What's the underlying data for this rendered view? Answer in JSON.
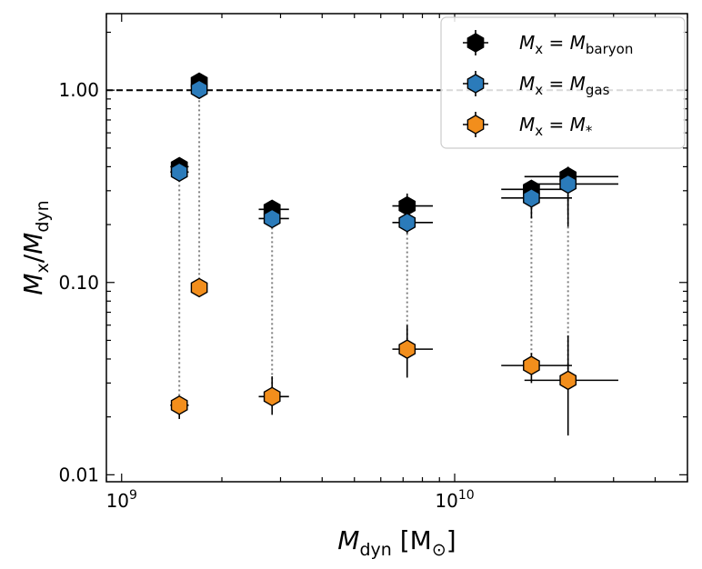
{
  "chart_data": {
    "type": "scatter",
    "x_scale": "log",
    "y_scale": "log",
    "xlim": [
      900000000,
      50000000000
    ],
    "ylim": [
      0.0092,
      2.5
    ],
    "xlabel": {
      "main": "M",
      "sub": "dyn",
      "unit": "[M",
      "unit_sub": "⊙",
      "unit_close": "]"
    },
    "ylabel": {
      "main": "M",
      "sub": "x",
      "slash": "/",
      "main2": "M",
      "sub2": "dyn"
    },
    "x_ticks": [
      {
        "value": 1000000000,
        "base": "10",
        "exp": "9"
      },
      {
        "value": 10000000000,
        "base": "10",
        "exp": "10"
      }
    ],
    "y_ticks": [
      {
        "value": 0.01,
        "label": "0.01"
      },
      {
        "value": 0.1,
        "label": "0.10"
      },
      {
        "value": 1.0,
        "label": "1.00"
      }
    ],
    "reference_line": {
      "y": 1.0,
      "style": "dashed"
    },
    "series": [
      {
        "name": "M_x = M_baryon",
        "legend": {
          "lhs": "M",
          "lhs_sub": "x",
          "eq": "=",
          "rhs": "M",
          "rhs_sub": "baryon"
        },
        "color": "#000000",
        "points": [
          {
            "x": 1490000000,
            "y": 0.4,
            "xerr": [
              1400000000,
              1590000000
            ],
            "yerr": [
              0.37,
              0.43
            ]
          },
          {
            "x": 1710000000,
            "y": 1.1,
            "xerr": [
              1660000000,
              1760000000
            ],
            "yerr": [
              1.02,
              1.19
            ]
          },
          {
            "x": 2830000000,
            "y": 0.24,
            "xerr": [
              2580000000,
              3180000000
            ],
            "yerr": [
              0.22,
              0.26
            ]
          },
          {
            "x": 7200000000,
            "y": 0.25,
            "xerr": [
              6500000000,
              8600000000
            ],
            "yerr": [
              0.22,
              0.29
            ]
          },
          {
            "x": 17000000000,
            "y": 0.305,
            "xerr": [
              13800000000,
              22500000000
            ],
            "yerr": [
              0.24,
              0.34
            ]
          },
          {
            "x": 21900000000,
            "y": 0.355,
            "xerr": [
              16200000000,
              31000000000
            ],
            "yerr": [
              0.23,
              0.4
            ]
          }
        ]
      },
      {
        "name": "M_x = M_gas",
        "legend": {
          "lhs": "M",
          "lhs_sub": "x",
          "eq": "=",
          "rhs": "M",
          "rhs_sub": "gas"
        },
        "color": "#2b7bba",
        "points": [
          {
            "x": 1490000000,
            "y": 0.375,
            "xerr": [
              1400000000,
              1590000000
            ],
            "yerr": [
              0.35,
              0.4
            ]
          },
          {
            "x": 1710000000,
            "y": 1.01,
            "xerr": [
              1660000000,
              1760000000
            ],
            "yerr": [
              0.93,
              1.08
            ]
          },
          {
            "x": 2830000000,
            "y": 0.215,
            "xerr": [
              2580000000,
              3180000000
            ],
            "yerr": [
              0.195,
              0.235
            ]
          },
          {
            "x": 7200000000,
            "y": 0.205,
            "xerr": [
              6500000000,
              8600000000
            ],
            "yerr": [
              0.18,
              0.235
            ]
          },
          {
            "x": 17000000000,
            "y": 0.275,
            "xerr": [
              13800000000,
              22500000000
            ],
            "yerr": [
              0.215,
              0.31
            ]
          },
          {
            "x": 21900000000,
            "y": 0.325,
            "xerr": [
              16200000000,
              31000000000
            ],
            "yerr": [
              0.195,
              0.37
            ]
          }
        ]
      },
      {
        "name": "M_x = M_*",
        "legend": {
          "lhs": "M",
          "lhs_sub": "x",
          "eq": "=",
          "rhs": "M",
          "rhs_sub": "*"
        },
        "color": "#f28e1c",
        "points": [
          {
            "x": 1490000000,
            "y": 0.023,
            "xerr": [
              1400000000,
              1590000000
            ],
            "yerr": [
              0.0195,
              0.0255
            ]
          },
          {
            "x": 1710000000,
            "y": 0.094,
            "xerr": [
              1660000000,
              1760000000
            ],
            "yerr": [
              0.086,
              0.103
            ]
          },
          {
            "x": 2830000000,
            "y": 0.0255,
            "xerr": [
              2580000000,
              3180000000
            ],
            "yerr": [
              0.0205,
              0.0325
            ]
          },
          {
            "x": 7200000000,
            "y": 0.045,
            "xerr": [
              6500000000,
              8600000000
            ],
            "yerr": [
              0.032,
              0.06
            ]
          },
          {
            "x": 17000000000,
            "y": 0.037,
            "xerr": [
              13800000000,
              22500000000
            ],
            "yerr": [
              0.03,
              0.043
            ]
          },
          {
            "x": 21900000000,
            "y": 0.031,
            "xerr": [
              16200000000,
              31000000000
            ],
            "yerr": [
              0.016,
              0.053
            ]
          }
        ]
      }
    ]
  }
}
